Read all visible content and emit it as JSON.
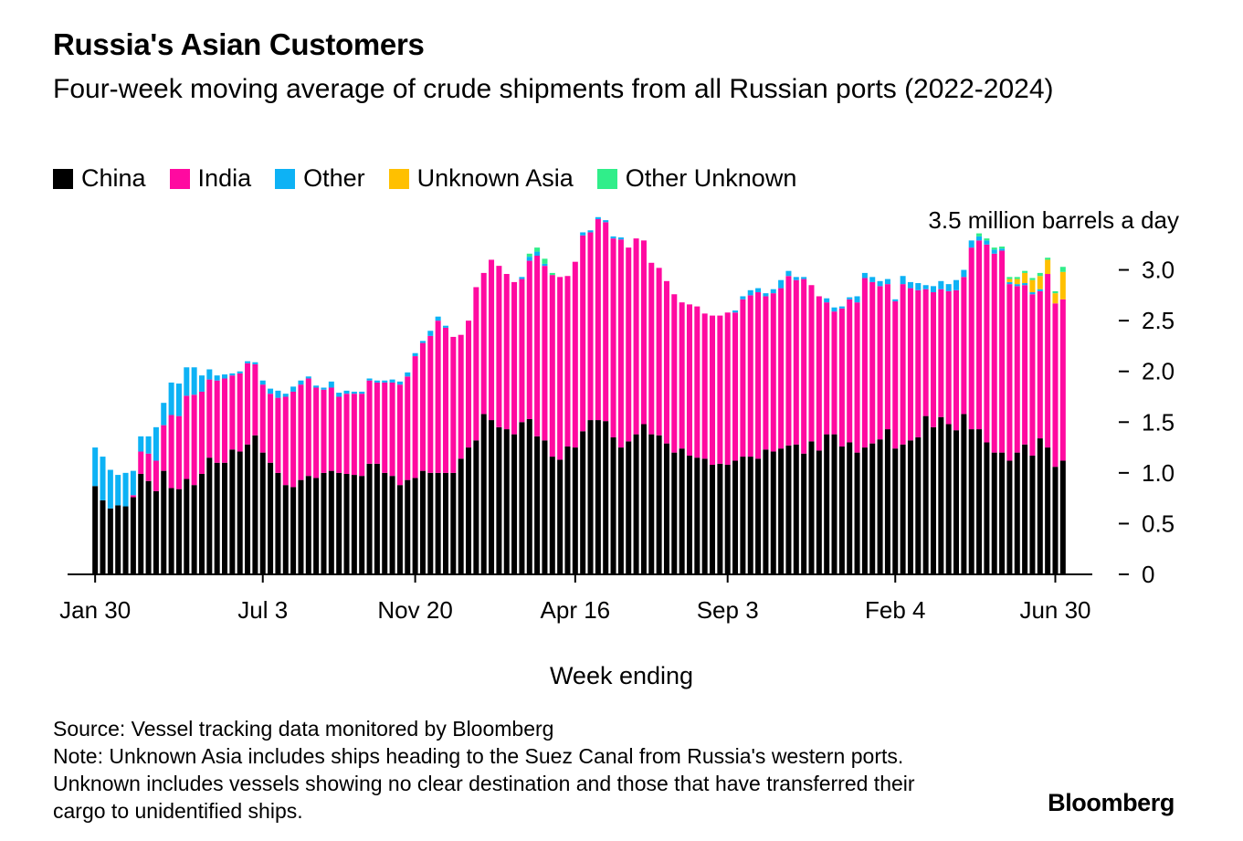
{
  "header": {
    "title": "Russia's Asian Customers",
    "subtitle": "Four-week moving average of crude shipments from all Russian ports (2022-2024)"
  },
  "footer": {
    "source": "Source: Vessel tracking data monitored by Bloomberg",
    "note": "Note: Unknown Asia includes ships heading to the Suez Canal from Russia's western ports. Unknown includes vessels showing no clear destination and those that have transferred their cargo to unidentified ships.",
    "logo": "Bloomberg"
  },
  "chart_data": {
    "type": "bar",
    "stacked": true,
    "title": "Russia's Asian Customers",
    "subtitle": "Four-week moving average of crude shipments from all Russian ports (2022-2024)",
    "xlabel": "Week ending",
    "ylabel": "3.5 million barrels a day",
    "ylim": [
      0,
      3.5
    ],
    "yticks": [
      0,
      0.5,
      1.0,
      1.5,
      2.0,
      2.5,
      3.0
    ],
    "ytick_labels": [
      "0",
      "0.5",
      "1.0",
      "1.5",
      "2.0",
      "2.5",
      "3.0"
    ],
    "ytop_label": "3.5 million barrels a day",
    "xtick_labels": [
      "Jan 30",
      "Jul 3",
      "Nov 20",
      "Apr 16",
      "Sep 3",
      "Feb 4",
      "Jun 30"
    ],
    "xtick_index": [
      0,
      22,
      42,
      63,
      83,
      105,
      126
    ],
    "legend": [
      {
        "name": "China",
        "color": "#000000"
      },
      {
        "name": "India",
        "color": "#ff0aa0"
      },
      {
        "name": "Other",
        "color": "#0db2f5"
      },
      {
        "name": "Unknown Asia",
        "color": "#ffc000"
      },
      {
        "name": "Other Unknown",
        "color": "#30ee8a"
      }
    ],
    "series": [
      {
        "name": "China",
        "values": [
          0.87,
          0.73,
          0.65,
          0.68,
          0.67,
          0.76,
          0.99,
          0.92,
          0.82,
          1.02,
          0.85,
          0.84,
          0.94,
          0.88,
          0.99,
          1.15,
          1.1,
          1.1,
          1.23,
          1.21,
          1.28,
          1.37,
          1.2,
          1.1,
          1.0,
          0.88,
          0.86,
          0.93,
          0.97,
          0.95,
          1.0,
          1.02,
          1.0,
          0.99,
          0.98,
          0.97,
          1.09,
          1.09,
          1.0,
          0.97,
          0.88,
          0.93,
          0.95,
          1.02,
          1.0,
          1.0,
          1.0,
          1.0,
          1.14,
          1.25,
          1.32,
          1.58,
          1.52,
          1.45,
          1.43,
          1.38,
          1.5,
          1.53,
          1.36,
          1.32,
          1.16,
          1.13,
          1.26,
          1.25,
          1.41,
          1.52,
          1.52,
          1.51,
          1.35,
          1.25,
          1.31,
          1.38,
          1.48,
          1.38,
          1.37,
          1.29,
          1.2,
          1.24,
          1.17,
          1.15,
          1.14,
          1.08,
          1.09,
          1.08,
          1.12,
          1.16,
          1.16,
          1.14,
          1.23,
          1.21,
          1.24,
          1.27,
          1.28,
          1.19,
          1.31,
          1.22,
          1.38,
          1.38,
          1.26,
          1.3,
          1.2,
          1.25,
          1.29,
          1.33,
          1.43,
          1.24,
          1.28,
          1.32,
          1.35,
          1.56,
          1.45,
          1.55,
          1.48,
          1.42,
          1.58,
          1.43,
          1.43,
          1.3,
          1.2,
          1.2,
          1.12,
          1.2,
          1.28,
          1.17,
          1.34,
          1.25,
          1.06,
          1.12
        ]
      },
      {
        "name": "India",
        "values": [
          0,
          0,
          0,
          0,
          0,
          0.02,
          0.22,
          0.27,
          0.3,
          0.45,
          0.72,
          0.72,
          0.82,
          0.89,
          0.81,
          0.77,
          0.81,
          0.83,
          0.73,
          0.77,
          0.8,
          0.7,
          0.67,
          0.68,
          0.74,
          0.87,
          0.94,
          0.94,
          0.96,
          0.89,
          0.82,
          0.82,
          0.75,
          0.79,
          0.8,
          0.81,
          0.82,
          0.8,
          0.89,
          0.92,
          0.99,
          1.02,
          1.2,
          1.26,
          1.35,
          1.5,
          1.43,
          1.34,
          1.22,
          1.25,
          1.51,
          1.39,
          1.58,
          1.59,
          1.53,
          1.5,
          1.41,
          1.56,
          1.78,
          1.72,
          1.79,
          1.8,
          1.68,
          1.83,
          1.93,
          1.85,
          1.98,
          1.96,
          1.96,
          2.05,
          1.91,
          1.93,
          1.81,
          1.69,
          1.65,
          1.6,
          1.56,
          1.44,
          1.49,
          1.49,
          1.43,
          1.47,
          1.46,
          1.5,
          1.46,
          1.55,
          1.59,
          1.64,
          1.51,
          1.56,
          1.58,
          1.67,
          1.62,
          1.72,
          1.54,
          1.52,
          1.3,
          1.21,
          1.36,
          1.41,
          1.48,
          1.67,
          1.59,
          1.51,
          1.43,
          1.45,
          1.58,
          1.5,
          1.45,
          1.25,
          1.33,
          1.26,
          1.31,
          1.38,
          1.35,
          1.79,
          1.86,
          1.95,
          1.96,
          1.99,
          1.74,
          1.64,
          1.57,
          1.59,
          1.45,
          1.71,
          1.61,
          1.59
        ]
      },
      {
        "name": "Other",
        "values": [
          0.38,
          0.43,
          0.38,
          0.3,
          0.33,
          0.24,
          0.15,
          0.17,
          0.33,
          0.22,
          0.32,
          0.32,
          0.28,
          0.27,
          0.16,
          0.1,
          0.05,
          0.04,
          0.02,
          0.02,
          0.02,
          0.02,
          0.04,
          0.05,
          0.07,
          0.03,
          0.05,
          0.04,
          0.02,
          0.02,
          0.02,
          0.06,
          0.04,
          0.03,
          0.02,
          0.02,
          0.02,
          0.02,
          0.02,
          0.03,
          0.03,
          0.04,
          0.03,
          0.02,
          0.05,
          0.04,
          0.02,
          0,
          0,
          0,
          0,
          0,
          0,
          0,
          0,
          0,
          0.02,
          0.04,
          0.04,
          0.02,
          0,
          0,
          0,
          0,
          0.03,
          0.02,
          0.02,
          0.02,
          0.02,
          0.02,
          0,
          0,
          0,
          0,
          0,
          0,
          0,
          0,
          0,
          0,
          0,
          0,
          0,
          0,
          0.02,
          0.03,
          0.05,
          0.04,
          0.03,
          0.04,
          0.08,
          0.05,
          0.03,
          0.02,
          0,
          0,
          0.04,
          0.04,
          0.02,
          0.02,
          0.06,
          0.05,
          0.05,
          0.05,
          0.05,
          0.02,
          0.08,
          0.06,
          0.07,
          0.04,
          0.06,
          0.08,
          0.07,
          0.1,
          0.07,
          0.07,
          0.04,
          0.04,
          0.04,
          0.02,
          0.02,
          0.02,
          0.02,
          0.02,
          0.02,
          0,
          0,
          0
        ]
      },
      {
        "name": "Unknown Asia",
        "values": [
          0,
          0,
          0,
          0,
          0,
          0,
          0,
          0,
          0,
          0,
          0,
          0,
          0,
          0,
          0,
          0,
          0,
          0,
          0,
          0,
          0,
          0,
          0,
          0,
          0,
          0,
          0,
          0,
          0,
          0,
          0,
          0,
          0,
          0,
          0,
          0,
          0,
          0,
          0,
          0,
          0,
          0,
          0,
          0,
          0,
          0,
          0,
          0,
          0,
          0,
          0,
          0,
          0,
          0,
          0,
          0,
          0,
          0,
          0,
          0,
          0,
          0,
          0,
          0,
          0,
          0,
          0,
          0,
          0,
          0,
          0,
          0,
          0,
          0,
          0,
          0,
          0,
          0,
          0,
          0,
          0,
          0,
          0,
          0,
          0,
          0,
          0,
          0,
          0,
          0,
          0,
          0,
          0,
          0,
          0,
          0,
          0,
          0,
          0,
          0,
          0,
          0,
          0,
          0,
          0,
          0,
          0,
          0,
          0,
          0,
          0,
          0,
          0,
          0,
          0,
          0,
          0,
          0,
          0,
          0,
          0.03,
          0.05,
          0.1,
          0.12,
          0.13,
          0.14,
          0.1,
          0.27
        ]
      },
      {
        "name": "Other Unknown",
        "values": [
          0,
          0,
          0,
          0,
          0,
          0,
          0,
          0,
          0,
          0,
          0,
          0,
          0,
          0,
          0,
          0,
          0,
          0,
          0,
          0,
          0,
          0,
          0,
          0,
          0,
          0,
          0,
          0,
          0,
          0,
          0,
          0,
          0,
          0,
          0,
          0,
          0,
          0,
          0,
          0,
          0,
          0,
          0,
          0,
          0,
          0,
          0,
          0,
          0,
          0,
          0,
          0,
          0,
          0,
          0,
          0,
          0,
          0.03,
          0.04,
          0.05,
          0.02,
          0,
          0,
          0,
          0,
          0,
          0,
          0,
          0,
          0,
          0,
          0,
          0,
          0,
          0,
          0,
          0,
          0,
          0,
          0,
          0,
          0,
          0,
          0,
          0,
          0,
          0,
          0,
          0,
          0,
          0,
          0,
          0,
          0,
          0,
          0,
          0,
          0,
          0,
          0,
          0,
          0,
          0,
          0,
          0,
          0,
          0,
          0,
          0,
          0,
          0,
          0,
          0,
          0,
          0,
          0,
          0.03,
          0.02,
          0.02,
          0.02,
          0.02,
          0.02,
          0.02,
          0.02,
          0.03,
          0.02,
          0.02,
          0.05
        ]
      }
    ]
  }
}
